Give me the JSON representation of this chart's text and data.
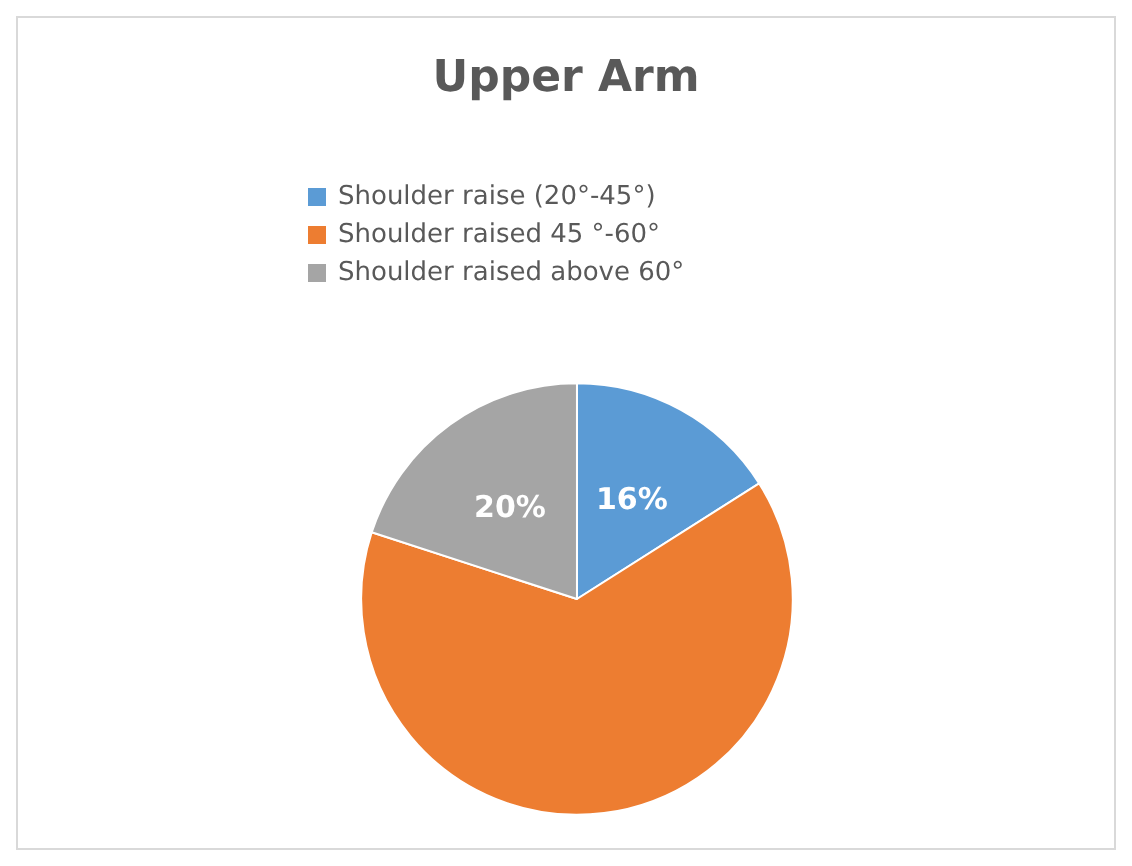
{
  "chart_data": {
    "type": "pie",
    "title": "Upper Arm",
    "categories": [
      "Shoulder raise (20°-45°)",
      "Shoulder raised 45 °-60°",
      "Shoulder raised above 60°"
    ],
    "values": [
      16,
      64,
      20
    ],
    "colors": [
      "#5b9bd5",
      "#ed7d31",
      "#a5a5a5"
    ],
    "value_labels": [
      "16%",
      null,
      "20%"
    ],
    "legend": "top"
  }
}
